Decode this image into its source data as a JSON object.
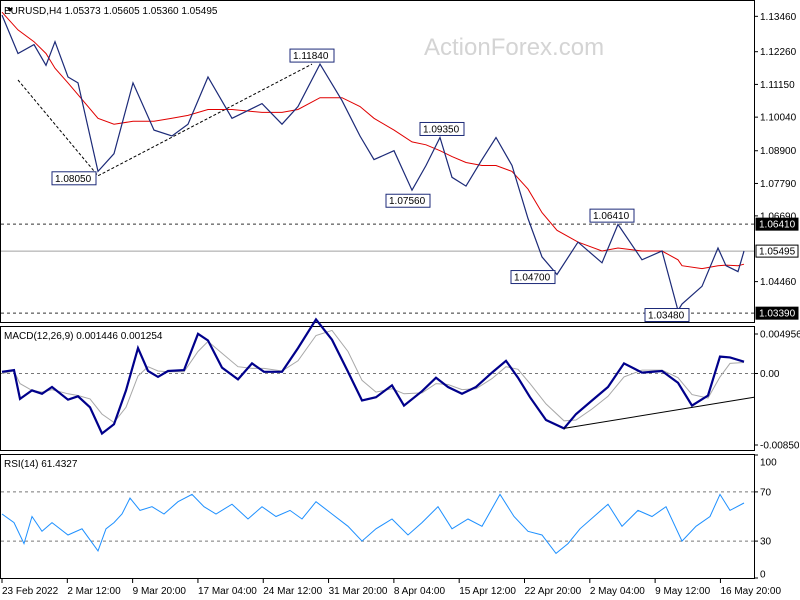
{
  "watermark": "ActionForex.com",
  "chart_data": [
    {
      "type": "line",
      "panel": "price",
      "header": "EURUSD,H4  1.05373 1.05605 1.05360 1.05495",
      "symbol": "EURUSD",
      "timeframe": "H4",
      "ohlc_last": {
        "open": 1.05373,
        "high": 1.05605,
        "low": 1.0536,
        "close": 1.05495
      },
      "ylim": [
        1.0309,
        1.1398
      ],
      "y_ticks": [
        "1.13460",
        "1.12260",
        "1.11150",
        "1.10040",
        "1.08900",
        "1.07790",
        "1.06690",
        "1.04460"
      ],
      "x_tick_labels": [
        "23 Feb 2022",
        "2 Mar 12:00",
        "9 Mar 20:00",
        "17 Mar 04:00",
        "24 Mar 12:00",
        "31 Mar 20:00",
        "8 Apr 04:00",
        "15 Apr 12:00",
        "22 Apr 20:00",
        "2 May 04:00",
        "9 May 12:00",
        "16 May 20:00"
      ],
      "x": [
        0,
        16,
        32,
        44,
        53,
        66,
        76,
        96,
        112,
        131,
        152,
        170,
        186,
        206,
        230,
        260,
        280,
        296,
        318,
        340,
        358,
        372,
        392,
        410,
        424,
        438,
        450,
        464,
        480,
        494,
        510,
        526,
        540,
        555,
        576,
        600,
        616,
        640,
        660,
        676,
        680,
        700,
        716,
        724,
        736,
        742
      ],
      "series": [
        {
          "values": [
            1.135,
            1.122,
            1.125,
            1.118,
            1.126,
            1.114,
            1.112,
            1.082,
            1.088,
            1.112,
            1.096,
            1.094,
            1.098,
            1.114,
            1.1,
            1.105,
            1.098,
            1.104,
            1.1184,
            1.106,
            1.094,
            1.086,
            1.089,
            1.0756,
            1.084,
            1.0935,
            1.08,
            1.077,
            1.086,
            1.0935,
            1.084,
            1.066,
            1.053,
            1.047,
            1.058,
            1.051,
            1.064,
            1.052,
            1.055,
            1.0348,
            1.037,
            1.043,
            1.056,
            1.05,
            1.048,
            1.05495
          ]
        },
        {
          "values": [
            1.136,
            1.13,
            1.126,
            1.122,
            1.117,
            1.112,
            1.108,
            1.1,
            1.098,
            1.099,
            1.099,
            1.1,
            1.101,
            1.103,
            1.103,
            1.102,
            1.102,
            1.103,
            1.107,
            1.107,
            1.104,
            1.1,
            1.096,
            1.092,
            1.091,
            1.089,
            1.087,
            1.085,
            1.084,
            1.084,
            1.082,
            1.076,
            1.068,
            1.062,
            1.058,
            1.055,
            1.056,
            1.055,
            1.055,
            1.052,
            1.05,
            1.049,
            1.05,
            1.0502,
            1.05,
            1.0505
          ]
        }
      ],
      "trendline": {
        "x": [
          16,
          96,
          310
        ],
        "y": [
          1.113,
          1.0805,
          1.1184
        ]
      },
      "level_lines": [
        {
          "value": 1.0641,
          "label": "1.06410",
          "style": "dashed"
        },
        {
          "value": 1.05495,
          "label": "1.05495",
          "style": "solid"
        },
        {
          "value": 1.0339,
          "label": "1.03390",
          "style": "dashed"
        }
      ],
      "annotations": [
        {
          "text": "1.11840",
          "x": 310,
          "y": 1.1184
        },
        {
          "text": "1.08050",
          "x": 96,
          "y": 1.0805
        },
        {
          "text": "1.09350",
          "x": 440,
          "y": 1.0935
        },
        {
          "text": "1.07560",
          "x": 410,
          "y": 1.0756
        },
        {
          "text": "1.06410",
          "x": 610,
          "y": 1.0641
        },
        {
          "text": "1.04700",
          "x": 555,
          "y": 1.047
        },
        {
          "text": "1.03480",
          "x": 683,
          "y": 1.0348
        }
      ]
    },
    {
      "type": "line",
      "panel": "macd",
      "header": "MACD(12,26,9) 0.001446 0.001254",
      "ylim": [
        -0.00905,
        0.0055
      ],
      "y_ticks": [
        "0.004956",
        "0.00",
        "-0.008501"
      ],
      "zero_line": 0,
      "x": [
        0,
        12,
        18,
        30,
        40,
        50,
        66,
        76,
        88,
        100,
        112,
        124,
        136,
        146,
        156,
        166,
        182,
        196,
        206,
        220,
        236,
        250,
        262,
        280,
        296,
        314,
        330,
        346,
        360,
        374,
        390,
        402,
        420,
        434,
        446,
        460,
        474,
        490,
        504,
        516,
        528,
        544,
        562,
        574,
        590,
        606,
        622,
        640,
        660,
        676,
        690,
        706,
        718,
        728,
        742
      ],
      "series": [
        {
          "name": "MACD",
          "values": [
            0.0002,
            0.0004,
            -0.003,
            -0.002,
            -0.0024,
            -0.0016,
            -0.0031,
            -0.0027,
            -0.004,
            -0.0071,
            -0.006,
            -0.002,
            0.003,
            0.0003,
            -0.0004,
            0.0003,
            0.0004,
            0.0047,
            0.0039,
            0.0007,
            -0.0007,
            0.0012,
            0.0002,
            0.0002,
            0.003,
            0.0064,
            0.004,
            0.0002,
            -0.0032,
            -0.0028,
            -0.0014,
            -0.0038,
            -0.0021,
            -0.0005,
            -0.0016,
            -0.0024,
            -0.0016,
            0.0001,
            0.0015,
            -0.0005,
            -0.0028,
            -0.0055,
            -0.0065,
            -0.0048,
            -0.0032,
            -0.0016,
            0.0012,
            0.0001,
            0.0003,
            -0.0011,
            -0.0038,
            -0.0026,
            0.002,
            0.0019,
            0.0014
          ]
        },
        {
          "name": "Signal",
          "values": [
            0.0,
            0.0003,
            -0.0012,
            -0.002,
            -0.0022,
            -0.0019,
            -0.0024,
            -0.0026,
            -0.003,
            -0.0048,
            -0.0058,
            -0.004,
            -0.0003,
            0.0008,
            0.0003,
            0.0002,
            0.0002,
            0.0026,
            0.0038,
            0.0024,
            0.0008,
            0.0006,
            0.0006,
            0.0003,
            0.0015,
            0.0045,
            0.0051,
            0.0026,
            -0.0008,
            -0.0022,
            -0.0018,
            -0.0024,
            -0.0023,
            -0.0012,
            -0.0013,
            -0.0019,
            -0.0018,
            -0.0006,
            0.0008,
            0.0005,
            -0.0012,
            -0.0036,
            -0.0056,
            -0.0055,
            -0.0042,
            -0.0027,
            -0.0004,
            0.0004,
            0.0004,
            -0.0005,
            -0.0025,
            -0.0029,
            -0.0004,
            0.0012,
            0.0013
          ]
        }
      ],
      "trendline": {
        "x": [
          562,
          755
        ],
        "y": [
          -0.0065,
          -0.0028
        ]
      }
    },
    {
      "type": "line",
      "panel": "rsi",
      "header": "RSI(14) 61.4327",
      "ylim": [
        0,
        100
      ],
      "y_ticks": [
        "100",
        "70",
        "30",
        "0"
      ],
      "level_lines": [
        70,
        30
      ],
      "x": [
        0,
        12,
        22,
        30,
        40,
        50,
        66,
        80,
        96,
        104,
        112,
        120,
        128,
        138,
        150,
        162,
        176,
        190,
        202,
        214,
        230,
        246,
        260,
        274,
        288,
        300,
        314,
        330,
        346,
        360,
        374,
        390,
        406,
        420,
        436,
        450,
        466,
        480,
        498,
        512,
        526,
        540,
        554,
        566,
        578,
        592,
        606,
        620,
        636,
        650,
        664,
        680,
        694,
        708,
        718,
        728,
        742
      ],
      "series": [
        {
          "name": "RSI",
          "values": [
            52,
            45,
            28,
            50,
            38,
            45,
            35,
            40,
            22,
            40,
            45,
            52,
            65,
            55,
            58,
            52,
            62,
            68,
            58,
            52,
            60,
            48,
            58,
            50,
            55,
            48,
            62,
            52,
            42,
            30,
            40,
            48,
            35,
            45,
            58,
            40,
            48,
            42,
            68,
            50,
            38,
            35,
            20,
            28,
            40,
            50,
            60,
            42,
            55,
            50,
            58,
            30,
            42,
            50,
            68,
            55,
            61
          ]
        }
      ]
    }
  ]
}
